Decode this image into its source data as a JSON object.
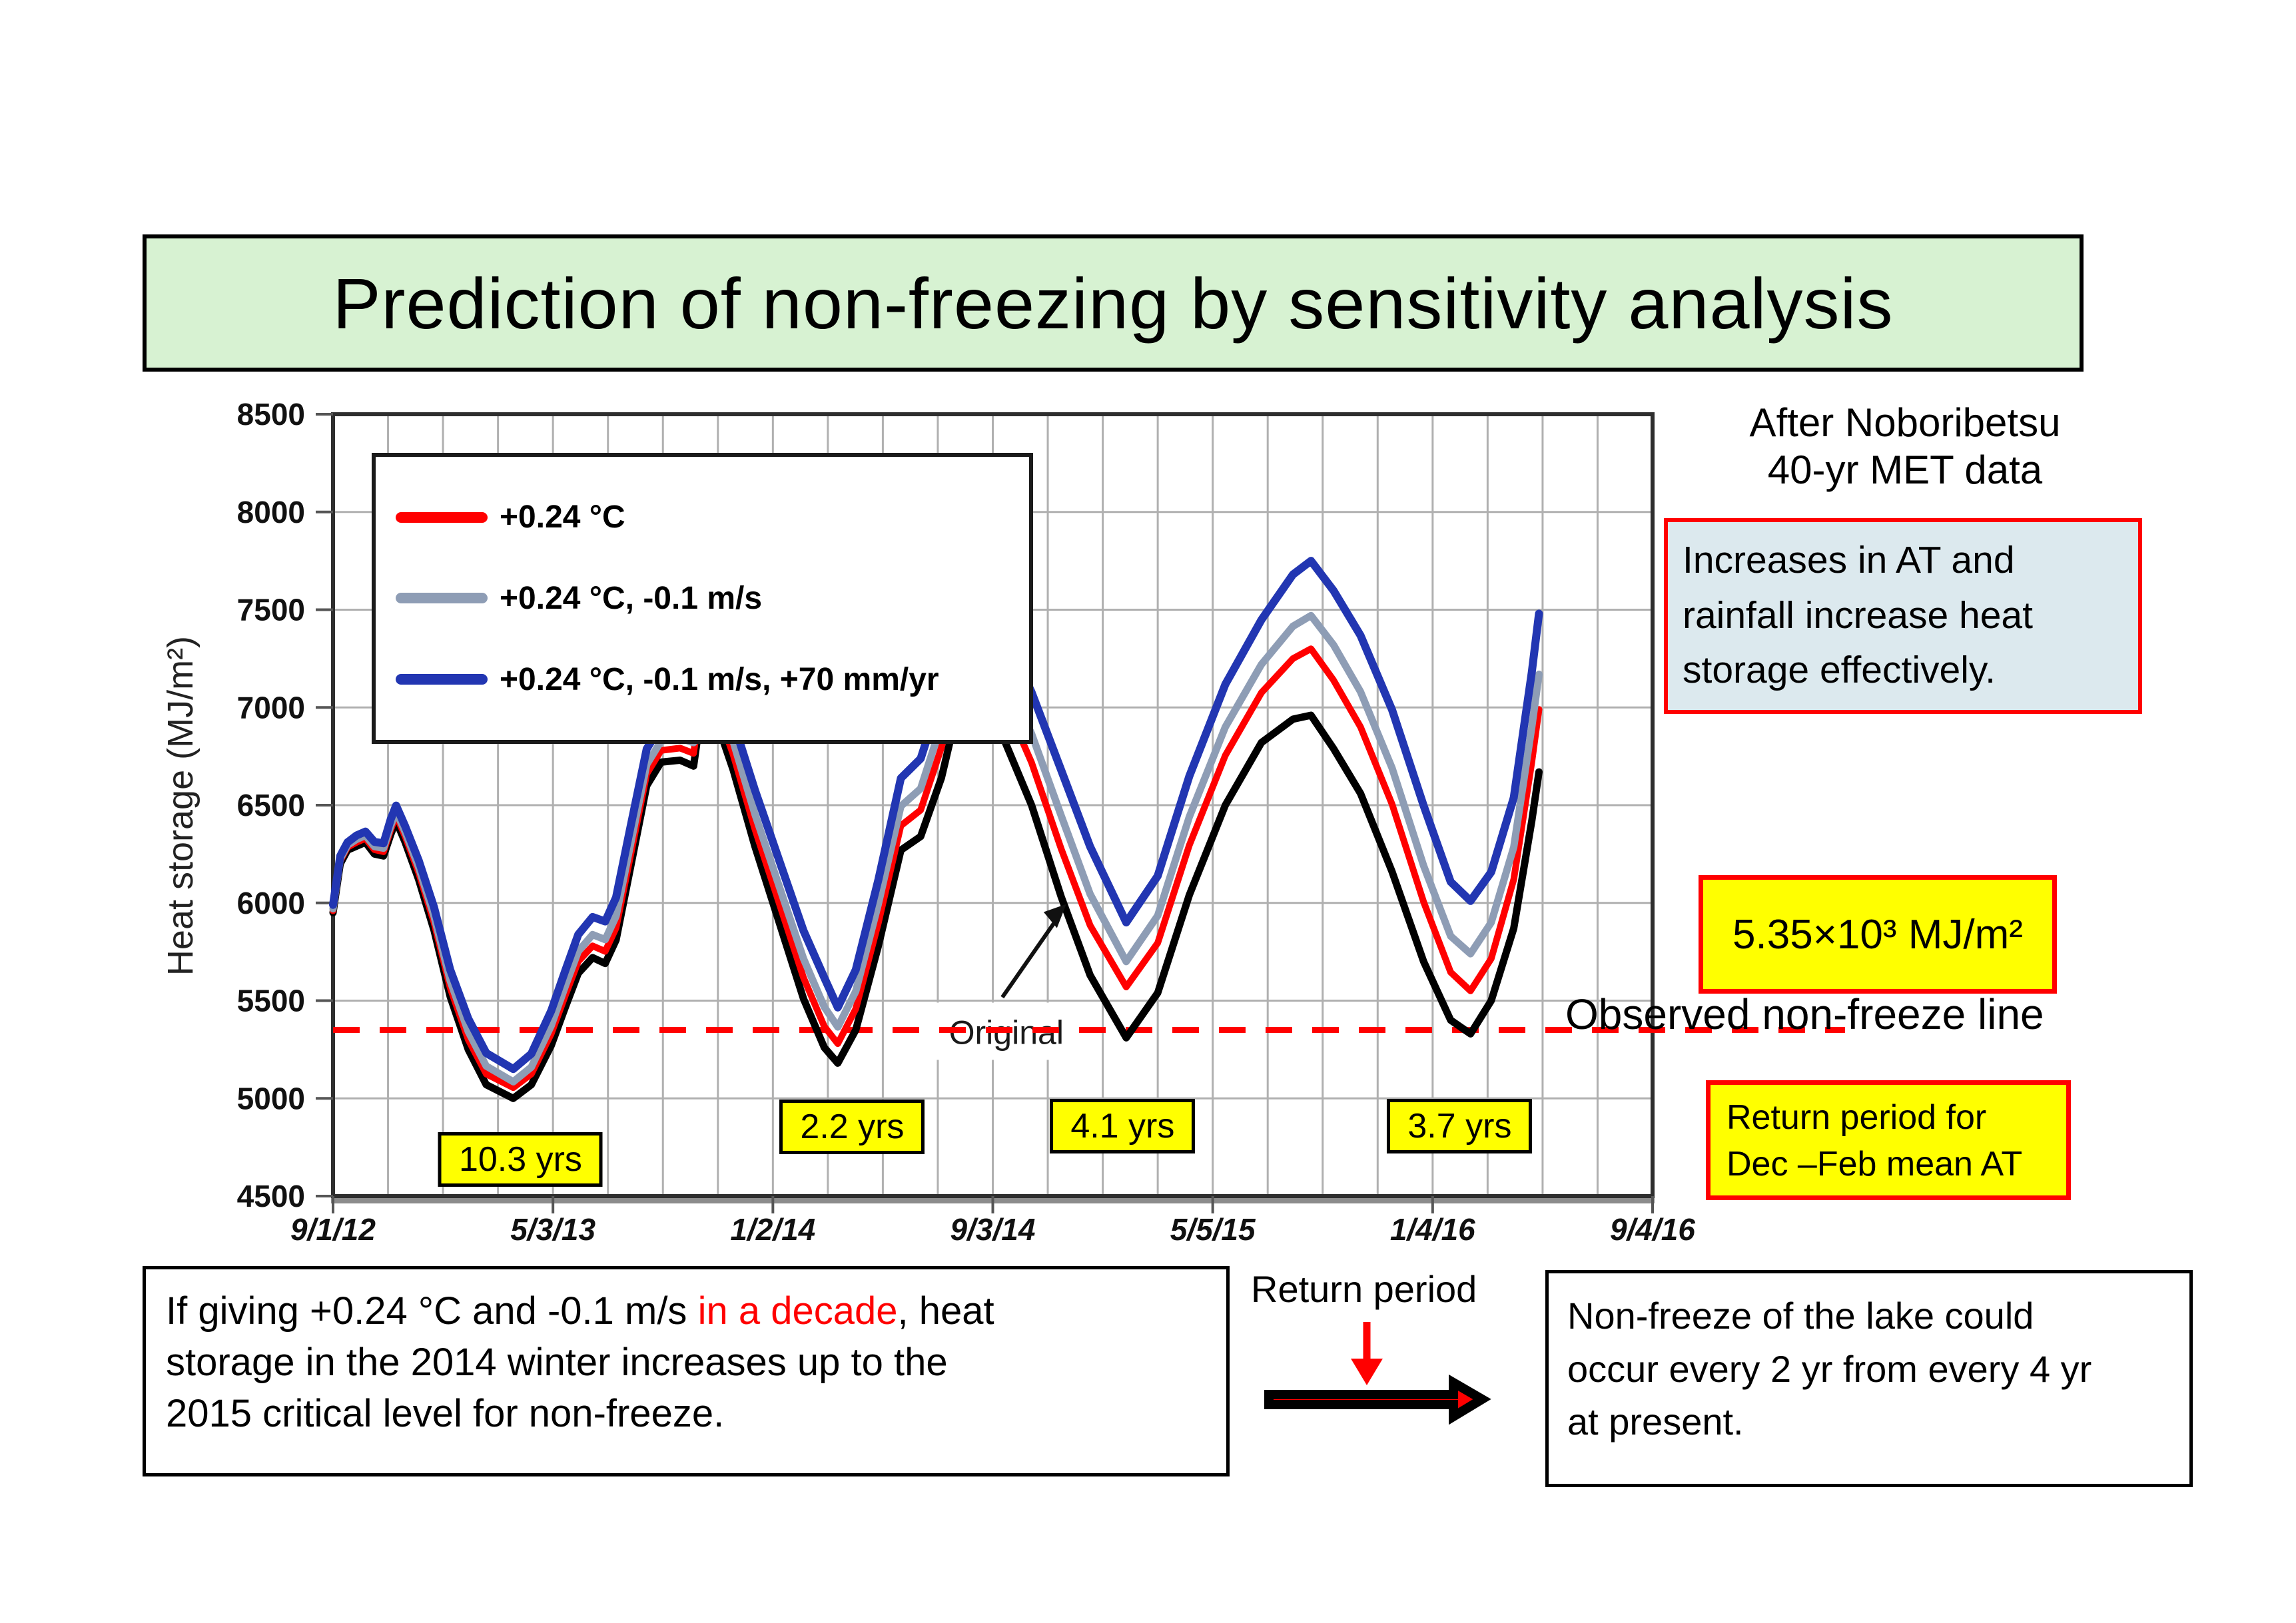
{
  "slide": {
    "title": "Prediction of non-freezing by sensitivity analysis",
    "title_bg": "#d7f2d2"
  },
  "notes": {
    "after_noboribetsu": [
      "After Noboribetsu",
      "40-yr MET data"
    ],
    "increase_box": [
      "Increases in AT and",
      "rainfall increase heat",
      "storage effectively."
    ],
    "threshold_label": "5.35×10³ MJ/m²",
    "observed_line_label": "Observed non-freeze line",
    "return_period_box": [
      "Return period for",
      "Dec –Feb mean AT"
    ],
    "return_period_label": "Return period",
    "bottom_left_lines": [
      [
        {
          "t": "If giving +0.24 °C and -0.1 m/s ",
          "c": "#000000"
        },
        {
          "t": "in a decade",
          "c": "#ff0000"
        },
        {
          "t": ", heat",
          "c": "#000000"
        }
      ],
      [
        {
          "t": "storage in the 2014 winter increases up to the",
          "c": "#000000"
        }
      ],
      [
        {
          "t": "2015 critical level for non-freeze.",
          "c": "#000000"
        }
      ]
    ],
    "bottom_right_lines": [
      "Non-freeze of the lake could",
      "occur every 2 yr from every 4 yr",
      "at present."
    ]
  },
  "chart_data": {
    "type": "line",
    "ylabel": "Heat storage (MJ/m²)",
    "ylim": [
      4500,
      8500
    ],
    "ytick_step": 500,
    "grid": true,
    "legend_position": "top-left",
    "x_tick_labels": [
      "9/1/12",
      "5/3/13",
      "1/2/14",
      "9/3/14",
      "5/5/15",
      "1/4/16",
      "9/4/16"
    ],
    "x_total_days": 1464,
    "x_minor_divisions_per_major": 4,
    "days": [
      0,
      8,
      16,
      26,
      36,
      46,
      56,
      64,
      70,
      80,
      95,
      112,
      130,
      150,
      170,
      200,
      220,
      242,
      258,
      272,
      288,
      302,
      314,
      330,
      348,
      364,
      385,
      400,
      411,
      424,
      444,
      468,
      495,
      522,
      545,
      560,
      580,
      605,
      630,
      652,
      675,
      698,
      722,
      745,
      775,
      808,
      840,
      880,
      915,
      950,
      990,
      1030,
      1065,
      1085,
      1110,
      1140,
      1175,
      1210,
      1240,
      1262,
      1285,
      1310,
      1330,
      1338
    ],
    "series": [
      {
        "name": "Original",
        "color": "#000000",
        "values": [
          5950,
          6200,
          6270,
          6290,
          6310,
          6250,
          6240,
          6350,
          6420,
          6310,
          6120,
          5860,
          5520,
          5250,
          5070,
          5000,
          5070,
          5270,
          5470,
          5640,
          5720,
          5690,
          5810,
          6180,
          6600,
          6720,
          6730,
          6700,
          7060,
          6950,
          6680,
          6290,
          5900,
          5510,
          5260,
          5180,
          5350,
          5780,
          6270,
          6340,
          6640,
          7090,
          7060,
          6830,
          6500,
          6030,
          5630,
          5310,
          5540,
          6040,
          6500,
          6820,
          6940,
          6960,
          6790,
          6560,
          6160,
          5700,
          5400,
          5330,
          5500,
          5870,
          6420,
          6670
        ]
      },
      {
        "name": "+0.24 °C",
        "color": "#ff0000",
        "values": [
          5960,
          6215,
          6285,
          6310,
          6330,
          6272,
          6262,
          6375,
          6448,
          6340,
          6155,
          5900,
          5565,
          5300,
          5125,
          5055,
          5125,
          5330,
          5530,
          5700,
          5780,
          5752,
          5872,
          6240,
          6660,
          6780,
          6792,
          6765,
          7125,
          7020,
          6758,
          6378,
          5998,
          5618,
          5368,
          5280,
          5458,
          5898,
          6395,
          6475,
          6795,
          7280,
          7255,
          7035,
          6718,
          6275,
          5885,
          5570,
          5795,
          6295,
          6755,
          7075,
          7250,
          7300,
          7140,
          6900,
          6505,
          6005,
          5645,
          5550,
          5715,
          6120,
          6720,
          6990
        ]
      },
      {
        "name": "+0.24 °C, -0.1 m/s",
        "color": "#8e9db5",
        "values": [
          5970,
          6225,
          6295,
          6325,
          6345,
          6288,
          6280,
          6395,
          6468,
          6362,
          6182,
          5932,
          5602,
          5342,
          5165,
          5085,
          5160,
          5372,
          5578,
          5752,
          5838,
          5812,
          5932,
          6298,
          6708,
          6828,
          6842,
          6820,
          7178,
          7078,
          6825,
          6455,
          6085,
          5715,
          5468,
          5365,
          5548,
          5995,
          6495,
          6585,
          6915,
          7400,
          7385,
          7175,
          6865,
          6445,
          6045,
          5700,
          5935,
          6440,
          6900,
          7220,
          7415,
          7470,
          7320,
          7080,
          6690,
          6190,
          5830,
          5740,
          5900,
          6285,
          6900,
          7170
        ]
      },
      {
        "name": "+0.24 °C, -0.1 m/s, +70 mm/yr",
        "color": "#2236b2",
        "values": [
          5990,
          6240,
          6310,
          6345,
          6365,
          6312,
          6305,
          6428,
          6498,
          6392,
          6218,
          5978,
          5658,
          5408,
          5232,
          5150,
          5228,
          5448,
          5658,
          5838,
          5928,
          5905,
          6028,
          6388,
          6788,
          6908,
          6928,
          6908,
          7248,
          7158,
          6928,
          6578,
          6218,
          5858,
          5618,
          5465,
          5658,
          6118,
          6638,
          6738,
          7068,
          7598,
          7578,
          7378,
          7078,
          6678,
          6288,
          5900,
          6138,
          6648,
          7118,
          7448,
          7680,
          7750,
          7598,
          7368,
          6988,
          6498,
          6108,
          6010,
          6158,
          6538,
          7180,
          7480
        ]
      }
    ],
    "dashed_line": {
      "value": 5350,
      "color": "#ff0000"
    },
    "original_label": {
      "text": "Original",
      "day": 747,
      "value": 5340
    },
    "return_periods": [
      {
        "label": "10.3 yrs",
        "day": 208,
        "value": 4665
      },
      {
        "label": "2.2 yrs",
        "day": 576,
        "value": 4830
      },
      {
        "label": "4.1 yrs",
        "day": 876,
        "value": 4835
      },
      {
        "label": "3.7 yrs",
        "day": 1250,
        "value": 4835
      }
    ]
  }
}
